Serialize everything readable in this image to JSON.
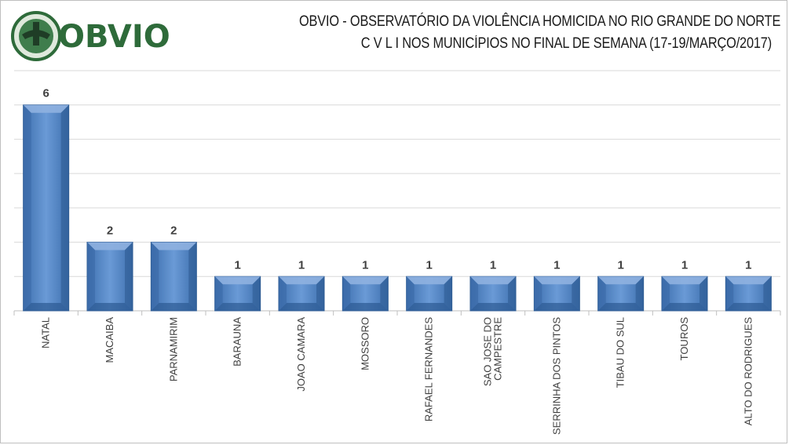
{
  "header": {
    "logo_text": "OBVIO",
    "title_line1": "OBVIO - OBSERVATÓRIO DA VIOLÊNCIA HOMICIDA NO RIO GRANDE DO NORTE",
    "title_line2": "C V L I   NOS MUNICÍPIOS NO FINAL DE SEMANA  (17-19/MARÇO/2017)"
  },
  "colors": {
    "bar_fill": "#4f81bd",
    "bar_light": "#8fb1e0",
    "bar_dark": "#2c5a93",
    "grid": "#d9d9d9",
    "logo_green": "#2e6b3a"
  },
  "chart_data": {
    "type": "bar",
    "categories": [
      "NATAL",
      "MACAIBA",
      "PARNAMIRIM",
      "BARAUNA",
      "JOAO CAMARA",
      "MOSSORO",
      "RAFAEL FERNANDES",
      "SAO JOSE DO CAMPESTRE",
      "SERRINHA DOS PINTOS",
      "TIBAU DO SUL",
      "TOUROS",
      "ALTO DO RODRIGUES"
    ],
    "category_lines": [
      [
        "NATAL"
      ],
      [
        "MACAIBA"
      ],
      [
        "PARNAMIRIM"
      ],
      [
        "BARAUNA"
      ],
      [
        "JOAO CAMARA"
      ],
      [
        "MOSSORO"
      ],
      [
        "RAFAEL FERNANDES"
      ],
      [
        "SAO JOSE DO",
        "CAMPESTRE"
      ],
      [
        "SERRINHA DOS PINTOS"
      ],
      [
        "TIBAU DO SUL"
      ],
      [
        "TOUROS"
      ],
      [
        "ALTO DO RODRIGUES"
      ]
    ],
    "values": [
      6,
      2,
      2,
      1,
      1,
      1,
      1,
      1,
      1,
      1,
      1,
      1
    ],
    "title": "OBVIO - OBSERVATÓRIO DA VIOLÊNCIA HOMICIDA NO RIO GRANDE DO NORTE",
    "subtitle": "C V L I   NOS MUNICÍPIOS NO FINAL DE SEMANA  (17-19/MARÇO/2017)",
    "xlabel": "",
    "ylabel": "",
    "ylim": [
      0,
      7
    ],
    "grid": true,
    "data_labels": true,
    "legend": "none"
  }
}
